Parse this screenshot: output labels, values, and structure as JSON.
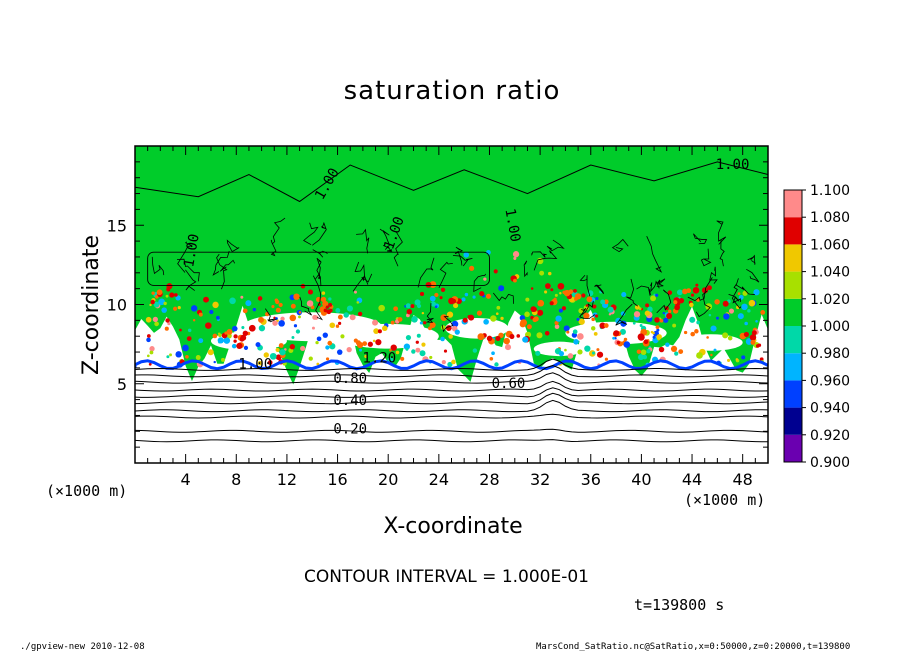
{
  "chart_data": {
    "type": "contour_heatmap",
    "title": "saturation ratio",
    "xlabel": "X-coordinate",
    "ylabel": "Z-coordinate",
    "x_unit": "(×1000 m)",
    "xlim": [
      0,
      50
    ],
    "ylim": [
      0,
      20
    ],
    "x_ticks": [
      4,
      8,
      12,
      16,
      20,
      24,
      28,
      32,
      36,
      40,
      44,
      48
    ],
    "y_ticks": [
      5,
      10,
      15
    ],
    "colorbar": {
      "levels": [
        0.9,
        0.92,
        0.94,
        0.96,
        0.98,
        1.0,
        1.02,
        1.04,
        1.06,
        1.08,
        1.1
      ],
      "labels": [
        "0.900",
        "0.920",
        "0.940",
        "0.960",
        "0.980",
        "1.000",
        "1.020",
        "1.040",
        "1.060",
        "1.080",
        "1.100"
      ],
      "colors": [
        "#6a00b0",
        "#000090",
        "#0040ff",
        "#00b4ff",
        "#00d8a8",
        "#00cc2a",
        "#a8e000",
        "#f0c800",
        "#ff6a00",
        "#e00000",
        "#ff8a8a"
      ]
    },
    "contour_labels": [
      {
        "text": "1.00",
        "x": 15.2,
        "z": 17.6,
        "angle": -60
      },
      {
        "text": "1.00",
        "x": 4.5,
        "z": 13.4,
        "angle": -80
      },
      {
        "text": "1.00",
        "x": 20.5,
        "z": 14.5,
        "angle": -70
      },
      {
        "text": "1.00",
        "x": 29.8,
        "z": 15.0,
        "angle": 80
      },
      {
        "text": "1.00",
        "x": 47.2,
        "z": 18.8,
        "angle": 0
      },
      {
        "text": "1.00",
        "x": 9.5,
        "z": 6.2,
        "angle": 0
      },
      {
        "text": "1.20",
        "x": 19.3,
        "z": 6.6,
        "angle": 0
      },
      {
        "text": "0.80",
        "x": 17.0,
        "z": 5.3,
        "angle": 0
      },
      {
        "text": "0.40",
        "x": 17.0,
        "z": 3.9,
        "angle": 0
      },
      {
        "text": "0.20",
        "x": 17.0,
        "z": 2.1,
        "angle": 0
      },
      {
        "text": "0.60",
        "x": 29.5,
        "z": 5.0,
        "angle": 0
      }
    ],
    "contour_interval": "CONTOUR INTERVAL = 1.000E-01",
    "time": "t=139800 s"
  },
  "footer": {
    "left": "./gpview-new  2010-12-08",
    "right": "MarsCond_SatRatio.nc@SatRatio,x=0:50000,z=0:20000,t=139800"
  }
}
